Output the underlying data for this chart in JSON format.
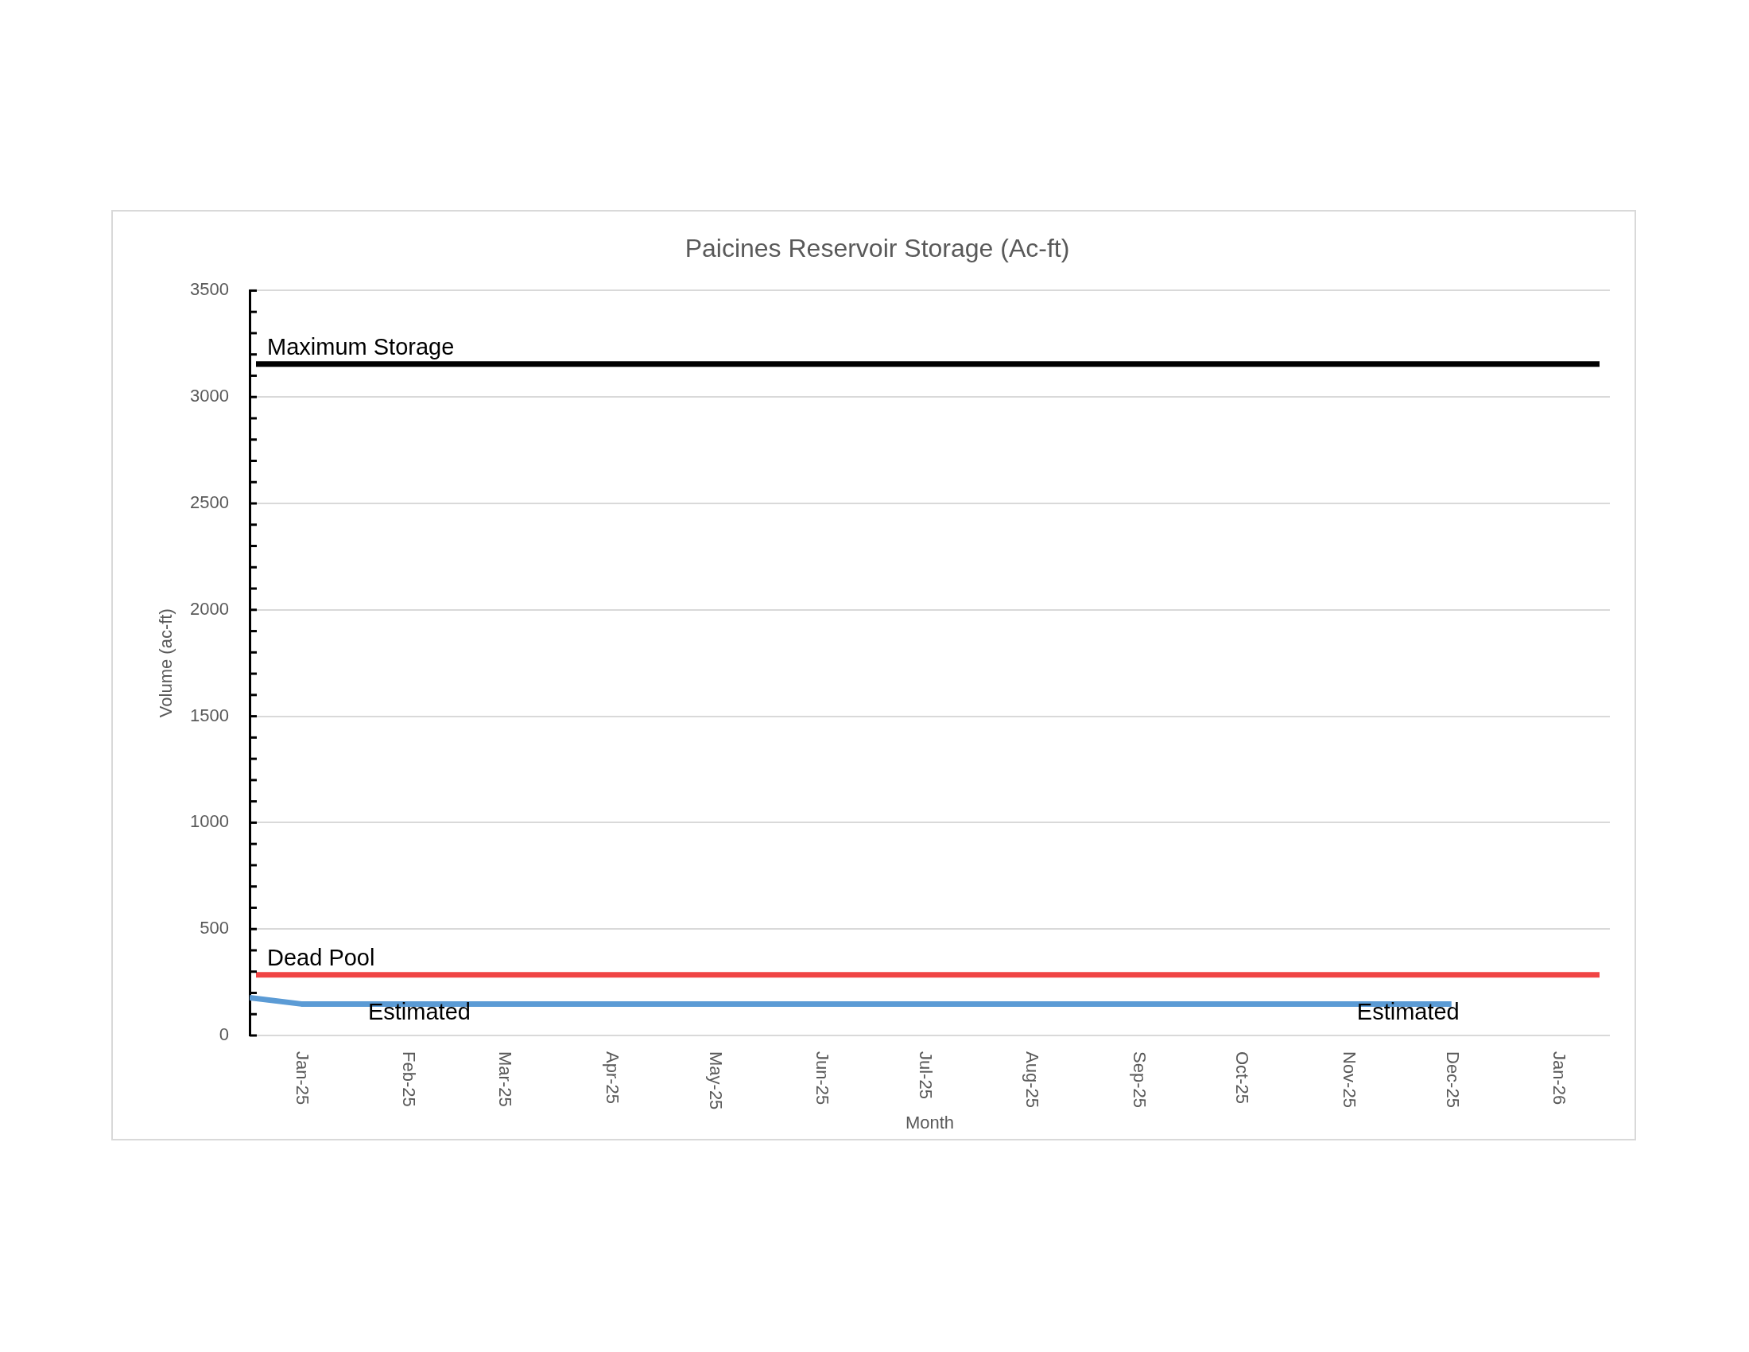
{
  "chart_data": {
    "type": "line",
    "title": "Paicines Reservoir Storage (Ac-ft)",
    "xlabel": "Month",
    "ylabel": "Volume (ac-ft)",
    "x": [
      "2024-12-17",
      "2025-01-01",
      "2025-02-01",
      "2025-03-01",
      "2025-04-01",
      "2025-05-01",
      "2025-06-01",
      "2025-07-01",
      "2025-08-01",
      "2025-09-01",
      "2025-10-01",
      "2025-11-01",
      "2025-12-01"
    ],
    "series": [
      {
        "color": "#5b9bd5",
        "values": [
          178,
          148,
          148,
          148,
          148,
          148,
          148,
          148,
          148,
          148,
          148,
          148,
          148
        ]
      }
    ],
    "xlim": [
      "2024-12-17",
      "2026-01-16"
    ],
    "xticks": [
      {
        "value": "2025-01-01",
        "label": "Jan-25"
      },
      {
        "value": "2025-02-01",
        "label": "Feb-25"
      },
      {
        "value": "2025-03-01",
        "label": "Mar-25"
      },
      {
        "value": "2025-04-01",
        "label": "Apr-25"
      },
      {
        "value": "2025-05-01",
        "label": "May-25"
      },
      {
        "value": "2025-06-01",
        "label": "Jun-25"
      },
      {
        "value": "2025-07-01",
        "label": "Jul-25"
      },
      {
        "value": "2025-08-01",
        "label": "Aug-25"
      },
      {
        "value": "2025-09-01",
        "label": "Sep-25"
      },
      {
        "value": "2025-10-01",
        "label": "Oct-25"
      },
      {
        "value": "2025-11-01",
        "label": "Nov-25"
      },
      {
        "value": "2025-12-01",
        "label": "Dec-25"
      },
      {
        "value": "2026-01-01",
        "label": "Jan-26"
      }
    ],
    "ylim": [
      0,
      3500
    ],
    "yticks": [
      0,
      {
        "value": 100,
        "label": null
      },
      {
        "value": 200,
        "label": null
      },
      {
        "value": 300,
        "label": null
      },
      {
        "value": 400,
        "label": null
      },
      500,
      {
        "value": 600,
        "label": null
      },
      {
        "value": 700,
        "label": null
      },
      {
        "value": 800,
        "label": null
      },
      {
        "value": 900,
        "label": null
      },
      1000,
      {
        "value": 1100,
        "label": null
      },
      {
        "value": 1200,
        "label": null
      },
      {
        "value": 1300,
        "label": null
      },
      {
        "value": 1400,
        "label": null
      },
      1500,
      {
        "value": 1600,
        "label": null
      },
      {
        "value": 1700,
        "label": null
      },
      {
        "value": 1800,
        "label": null
      },
      {
        "value": 1900,
        "label": null
      },
      2000,
      {
        "value": 2100,
        "label": null
      },
      {
        "value": 2200,
        "label": null
      },
      {
        "value": 2300,
        "label": null
      },
      {
        "value": 2400,
        "label": null
      },
      2500,
      {
        "value": 2600,
        "label": null
      },
      {
        "value": 2700,
        "label": null
      },
      {
        "value": 2800,
        "label": null
      },
      {
        "value": 2900,
        "label": null
      },
      3000,
      {
        "value": 3100,
        "label": null
      },
      {
        "value": 3200,
        "label": null
      },
      {
        "value": 3300,
        "label": null
      },
      {
        "value": 3400,
        "label": null
      },
      3500
    ],
    "ref_lines": [
      {
        "axis": "y",
        "value": 3155,
        "label": "Maximum Storage",
        "color": "#000000"
      },
      {
        "axis": "y",
        "value": 285,
        "label": "Dead Pool",
        "color": "#f04444"
      }
    ],
    "annotations": [
      "Estimated",
      "Estimated"
    ],
    "grid": "y",
    "legend": false,
    "marker": "none",
    "line_style": "solid"
  }
}
